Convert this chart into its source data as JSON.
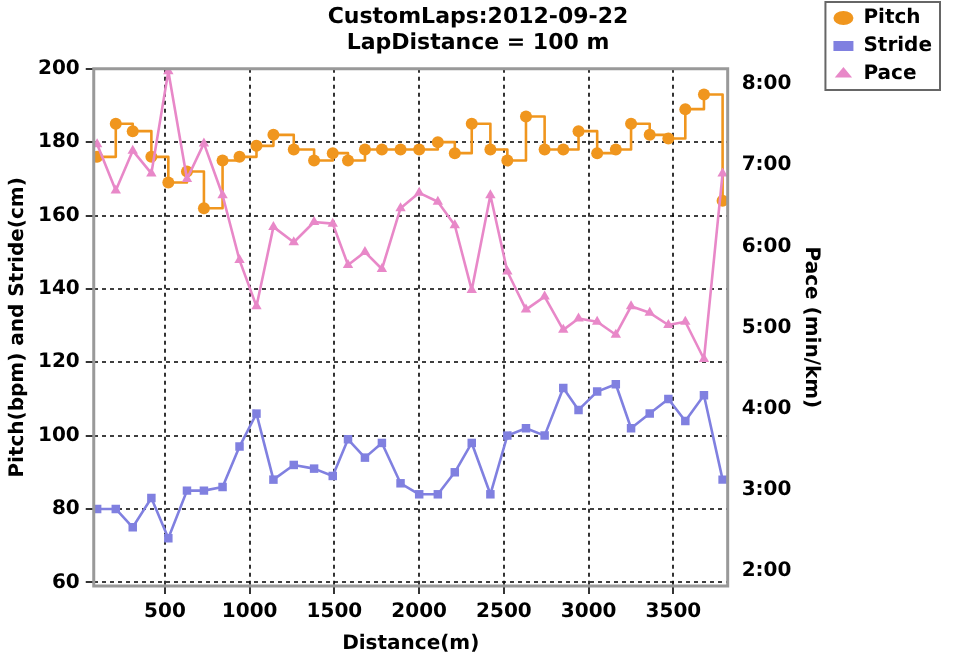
{
  "chart_data": {
    "type": "line",
    "title": "CustomLaps:2012-09-22",
    "subtitle": "LapDistance = 100 m",
    "xlabel": "Distance(m)",
    "ylabel": "Pitch(bpm) and Stride(cm)",
    "y2label": "Pace (min/km)",
    "x": [
      100,
      210,
      310,
      420,
      520,
      630,
      730,
      840,
      940,
      1040,
      1140,
      1260,
      1380,
      1490,
      1580,
      1680,
      1780,
      1890,
      2000,
      2110,
      2210,
      2310,
      2420,
      2520,
      2630,
      2740,
      2850,
      2940,
      3050,
      3160,
      3250,
      3360,
      3470,
      3570,
      3680,
      3790
    ],
    "xlim": [
      80,
      3820
    ],
    "xticks": [
      500,
      1000,
      1500,
      2000,
      2500,
      3000,
      3500
    ],
    "ylim": [
      59,
      200
    ],
    "yticks": [
      60,
      80,
      100,
      120,
      140,
      160,
      180,
      200
    ],
    "y2lim": [
      1.81,
      8.19
    ],
    "y2ticks": [
      {
        "value": 2,
        "label": "2:00"
      },
      {
        "value": 3,
        "label": "3:00"
      },
      {
        "value": 4,
        "label": "4:00"
      },
      {
        "value": 5,
        "label": "5:00"
      },
      {
        "value": 6,
        "label": "6:00"
      },
      {
        "value": 7,
        "label": "7:00"
      },
      {
        "value": 8,
        "label": "8:00"
      }
    ],
    "grid": true,
    "legend": "top right",
    "line_style": "solid",
    "series": [
      {
        "name": "Pitch",
        "type": "step",
        "marker": "circle",
        "color": "#f0961e",
        "values": [
          176,
          185,
          183,
          176,
          169,
          172,
          162,
          175,
          176,
          179,
          182,
          178,
          175,
          177,
          175,
          178,
          178,
          178,
          178,
          180,
          177,
          185,
          178,
          175,
          187,
          178,
          178,
          183,
          177,
          178,
          185,
          182,
          181,
          189,
          193,
          164
        ]
      },
      {
        "name": "Stride",
        "type": "line",
        "marker": "square",
        "color": "#8080e0",
        "values": [
          80,
          80,
          75,
          83,
          72,
          85,
          85,
          86,
          97,
          106,
          88,
          92,
          91,
          89,
          99,
          94,
          98,
          87,
          84,
          84,
          90,
          98,
          84,
          100,
          102,
          100,
          113,
          107,
          112,
          114,
          102,
          106,
          110,
          104,
          111,
          88
        ]
      },
      {
        "name": "Pace",
        "type": "line",
        "marker": "triangle",
        "color": "#e888c8",
        "axis": "y2",
        "values": [
          7.26,
          6.69,
          7.18,
          6.9,
          8.16,
          6.83,
          7.27,
          6.63,
          5.83,
          5.26,
          6.24,
          6.05,
          6.3,
          6.28,
          5.77,
          5.93,
          5.72,
          6.47,
          6.66,
          6.55,
          6.26,
          5.46,
          6.63,
          5.69,
          5.22,
          5.38,
          4.97,
          5.11,
          5.07,
          4.91,
          5.26,
          5.18,
          5.03,
          5.07,
          4.61,
          6.9
        ]
      }
    ]
  }
}
